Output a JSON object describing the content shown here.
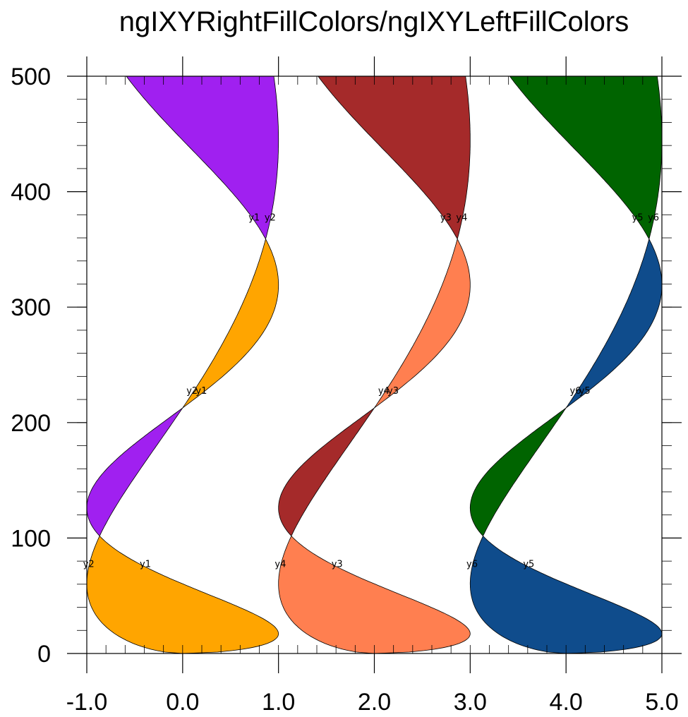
{
  "chart_data": {
    "type": "area",
    "title": "ngIXYRightFillColors/ngIXYLeftFillColors",
    "xlabel": "",
    "ylabel": "",
    "xlim": [
      -1.0,
      5.0
    ],
    "ylim": [
      0,
      500
    ],
    "x_ticks": [
      "-1.0",
      "0.0",
      "1.0",
      "2.0",
      "3.0",
      "4.0",
      "5.0"
    ],
    "x_tick_values": [
      -1,
      0,
      1,
      2,
      3,
      4,
      5
    ],
    "y_ticks": [
      "0",
      "100",
      "200",
      "300",
      "400",
      "500"
    ],
    "y_tick_values": [
      0,
      100,
      200,
      300,
      400,
      500
    ],
    "curve_model": {
      "description": "x = offset + sin(y * pi / 315) for y1,y3,y5 and x = offset + sin(y * pi / 315 * (...)) pairs; y from 0 to 500",
      "y_range": [
        0,
        500
      ]
    },
    "series": [
      {
        "name": "y1",
        "offset": 0,
        "kind": "a"
      },
      {
        "name": "y2",
        "offset": 0,
        "kind": "b"
      },
      {
        "name": "y3",
        "offset": 2,
        "kind": "a"
      },
      {
        "name": "y4",
        "offset": 2,
        "kind": "b"
      },
      {
        "name": "y5",
        "offset": 4,
        "kind": "a"
      },
      {
        "name": "y6",
        "offset": 4,
        "kind": "b"
      }
    ],
    "fills": [
      {
        "pair": [
          "y1",
          "y2"
        ],
        "right_color": "#FFA500",
        "left_color": "#A020F0"
      },
      {
        "pair": [
          "y3",
          "y4"
        ],
        "right_color": "#FF7F50",
        "left_color": "#A52A2A"
      },
      {
        "pair": [
          "y5",
          "y6"
        ],
        "right_color": "#0F4C8C",
        "left_color": "#006400"
      }
    ],
    "grid": false,
    "legend": "none"
  }
}
